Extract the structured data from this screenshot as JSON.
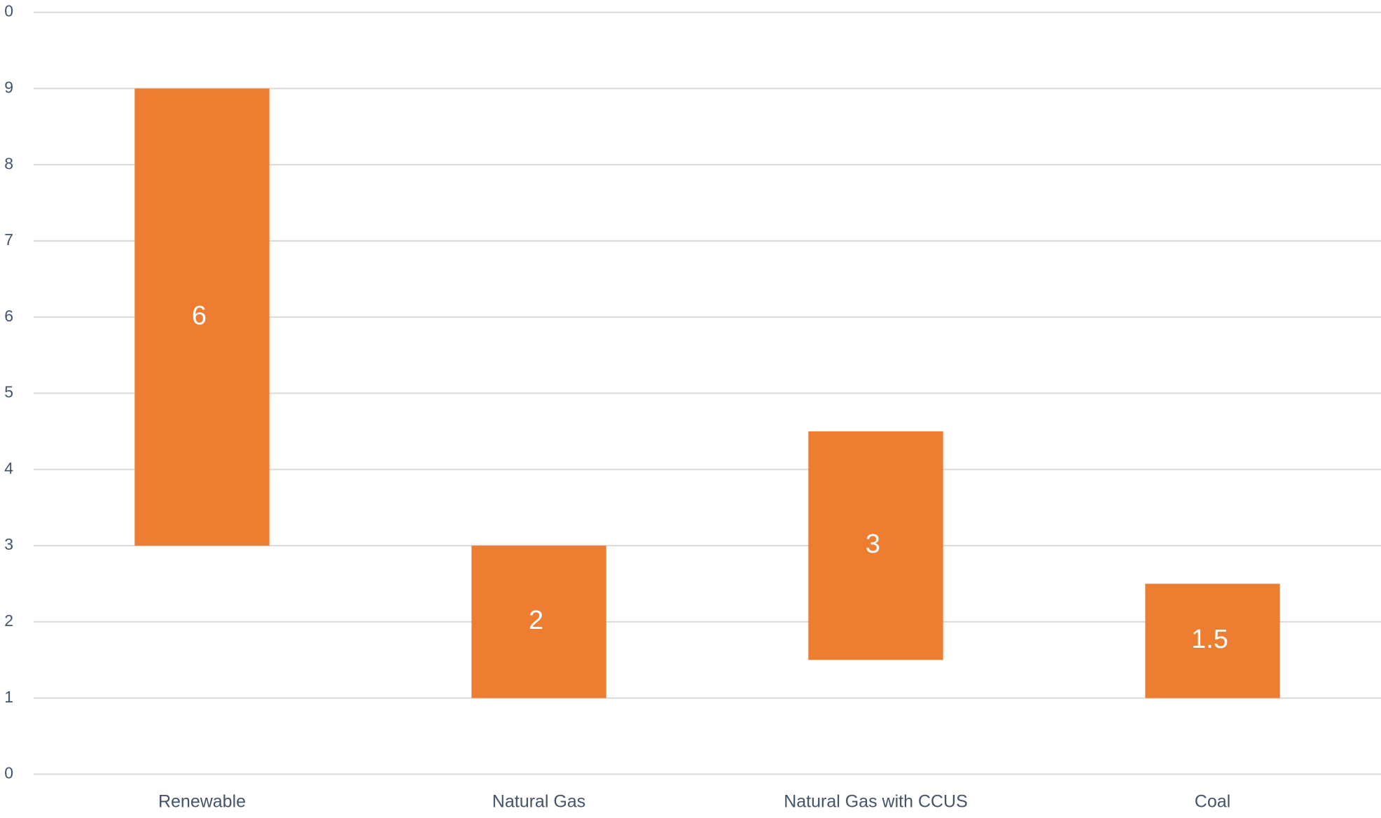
{
  "chart_data": {
    "type": "bar",
    "stacked": true,
    "categories": [
      "Renewable",
      "Natural Gas",
      "Natural Gas with CCUS",
      "Coal"
    ],
    "series": [
      {
        "color": "none",
        "values": [
          3,
          1,
          1.5,
          1
        ]
      },
      {
        "color": "#ed7d31",
        "values": [
          6,
          2,
          3,
          1.5
        ],
        "data_labels": true,
        "label_color": "#ffffff"
      }
    ],
    "ylim": [
      0,
      10
    ],
    "yticks": [
      0,
      1,
      2,
      3,
      4,
      5,
      6,
      7,
      8,
      9,
      {
        "value": 10,
        "label": "0"
      }
    ],
    "grid": true
  }
}
